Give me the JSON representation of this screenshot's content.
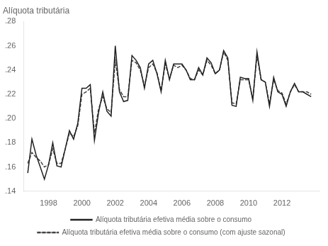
{
  "chart_data": {
    "type": "line",
    "title": "Alíquota tributária",
    "x": [
      1996.75,
      1997,
      1997.25,
      1997.5,
      1997.75,
      1998,
      1998.25,
      1998.5,
      1998.75,
      1999,
      1999.25,
      1999.5,
      1999.75,
      2000,
      2000.25,
      2000.5,
      2000.75,
      2001,
      2001.25,
      2001.5,
      2001.75,
      2002,
      2002.25,
      2002.5,
      2002.75,
      2003,
      2003.25,
      2003.5,
      2003.75,
      2004,
      2004.25,
      2004.5,
      2004.75,
      2005,
      2005.25,
      2005.5,
      2005.75,
      2006,
      2006.25,
      2006.5,
      2006.75,
      2007,
      2007.25,
      2007.5,
      2007.75,
      2008,
      2008.25,
      2008.5,
      2008.75,
      2009,
      2009.25,
      2009.5,
      2009.75,
      2010,
      2010.25,
      2010.5,
      2010.75,
      2011,
      2011.25,
      2011.5,
      2011.75,
      2012,
      2012.25,
      2012.5,
      2012.75,
      2013,
      2013.25,
      2013.5,
      2013.75
    ],
    "series": [
      {
        "name": "Alíquota tributária efetiva média sobre o consumo",
        "color": "#222222",
        "line_style": "solid",
        "values": [
          0.155,
          0.183,
          0.17,
          0.16,
          0.15,
          0.162,
          0.18,
          0.161,
          0.16,
          0.175,
          0.19,
          0.183,
          0.196,
          0.225,
          0.225,
          0.228,
          0.182,
          0.205,
          0.222,
          0.206,
          0.202,
          0.26,
          0.222,
          0.214,
          0.215,
          0.252,
          0.248,
          0.242,
          0.225,
          0.245,
          0.248,
          0.237,
          0.222,
          0.248,
          0.232,
          0.245,
          0.245,
          0.245,
          0.24,
          0.232,
          0.232,
          0.242,
          0.236,
          0.25,
          0.246,
          0.237,
          0.24,
          0.256,
          0.25,
          0.211,
          0.21,
          0.234,
          0.233,
          0.233,
          0.215,
          0.255,
          0.232,
          0.23,
          0.21,
          0.234,
          0.222,
          0.22,
          0.21,
          0.222,
          0.229,
          0.222,
          0.222,
          0.22,
          0.218
        ]
      },
      {
        "name": "Alíquota tributária efetiva média sobre o consumo (com ajuste sazonal)",
        "color": "#444444",
        "line_style": "dashed",
        "values": [
          0.163,
          0.172,
          0.168,
          0.165,
          0.16,
          0.162,
          0.175,
          0.163,
          0.163,
          0.175,
          0.188,
          0.185,
          0.194,
          0.22,
          0.222,
          0.225,
          0.188,
          0.208,
          0.218,
          0.208,
          0.205,
          0.248,
          0.224,
          0.218,
          0.218,
          0.248,
          0.246,
          0.24,
          0.227,
          0.242,
          0.245,
          0.238,
          0.223,
          0.245,
          0.233,
          0.244,
          0.242,
          0.244,
          0.24,
          0.233,
          0.232,
          0.24,
          0.236,
          0.248,
          0.244,
          0.237,
          0.24,
          0.255,
          0.248,
          0.213,
          0.212,
          0.232,
          0.232,
          0.232,
          0.216,
          0.252,
          0.232,
          0.23,
          0.212,
          0.232,
          0.223,
          0.221,
          0.212,
          0.222,
          0.228,
          0.222,
          0.222,
          0.222,
          0.22
        ]
      }
    ],
    "xlim": [
      1996.5,
      2014.25
    ],
    "xticks": [
      1998,
      2000,
      2002,
      2004,
      2006,
      2008,
      2010,
      2012
    ],
    "ylim": [
      0.14,
      0.28
    ],
    "yticks": [
      {
        "value": 0.14,
        "label": ".14"
      },
      {
        "value": 0.16,
        "label": ".16"
      },
      {
        "value": 0.18,
        "label": ".18"
      },
      {
        "value": 0.2,
        "label": ".20"
      },
      {
        "value": 0.22,
        "label": ".22"
      },
      {
        "value": 0.24,
        "label": ".24"
      },
      {
        "value": 0.26,
        "label": ".26"
      },
      {
        "value": 0.28,
        "label": ".28"
      }
    ],
    "grid": false,
    "legend": "bottom"
  }
}
